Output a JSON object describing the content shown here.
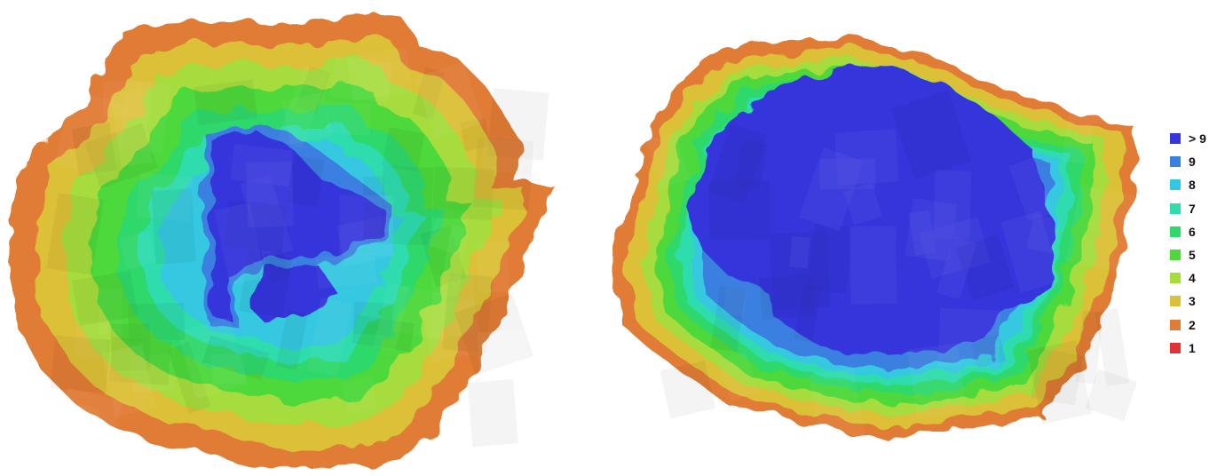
{
  "legend": {
    "items": [
      {
        "label": "> 9",
        "color": "#3535dc"
      },
      {
        "label": "9",
        "color": "#3b7fe0"
      },
      {
        "label": "8",
        "color": "#34c8e0"
      },
      {
        "label": "7",
        "color": "#2edcae"
      },
      {
        "label": "6",
        "color": "#2fd86a"
      },
      {
        "label": "5",
        "color": "#4ed83a"
      },
      {
        "label": "4",
        "color": "#a6dc3c"
      },
      {
        "label": "3",
        "color": "#dcc038"
      },
      {
        "label": "2",
        "color": "#e07c34"
      },
      {
        "label": "1",
        "color": "#e03434"
      }
    ]
  }
}
